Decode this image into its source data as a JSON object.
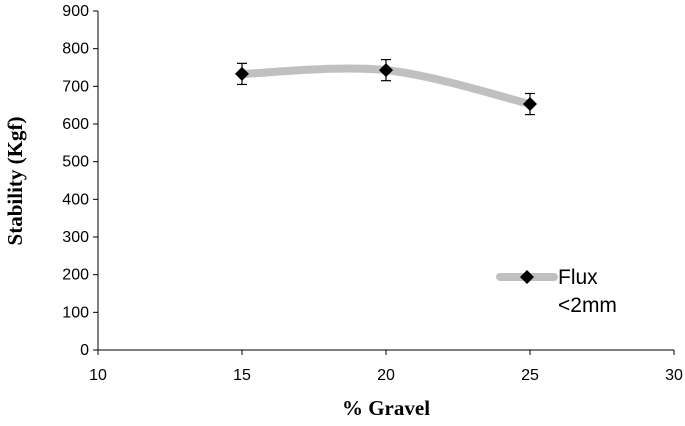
{
  "chart_data": {
    "type": "line",
    "title": "",
    "xlabel": "% Gravel",
    "ylabel": "Stability (Kgf)",
    "xlim": [
      10,
      30
    ],
    "ylim": [
      0,
      900
    ],
    "x_ticks": [
      10,
      15,
      20,
      25,
      30
    ],
    "y_ticks": [
      0,
      100,
      200,
      300,
      400,
      500,
      600,
      700,
      800,
      900
    ],
    "grid": false,
    "legend_position": "right",
    "series": [
      {
        "name": "Flux <2mm",
        "x": [
          15,
          20,
          25
        ],
        "y": [
          733,
          743,
          653
        ],
        "error": [
          28,
          28,
          28
        ],
        "line_color": "#c0c0c0",
        "marker": "diamond",
        "marker_color": "#000000",
        "smooth": true
      }
    ]
  }
}
